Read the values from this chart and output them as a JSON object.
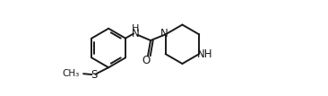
{
  "background_color": "#ffffff",
  "line_color": "#1a1a1a",
  "line_width": 1.4,
  "font_size_atoms": 8.5,
  "font_size_small": 7.5,
  "figsize": [
    3.66,
    1.07
  ],
  "dpi": 100,
  "xlim": [
    0.0,
    7.2
  ],
  "ylim": [
    -0.5,
    3.0
  ]
}
